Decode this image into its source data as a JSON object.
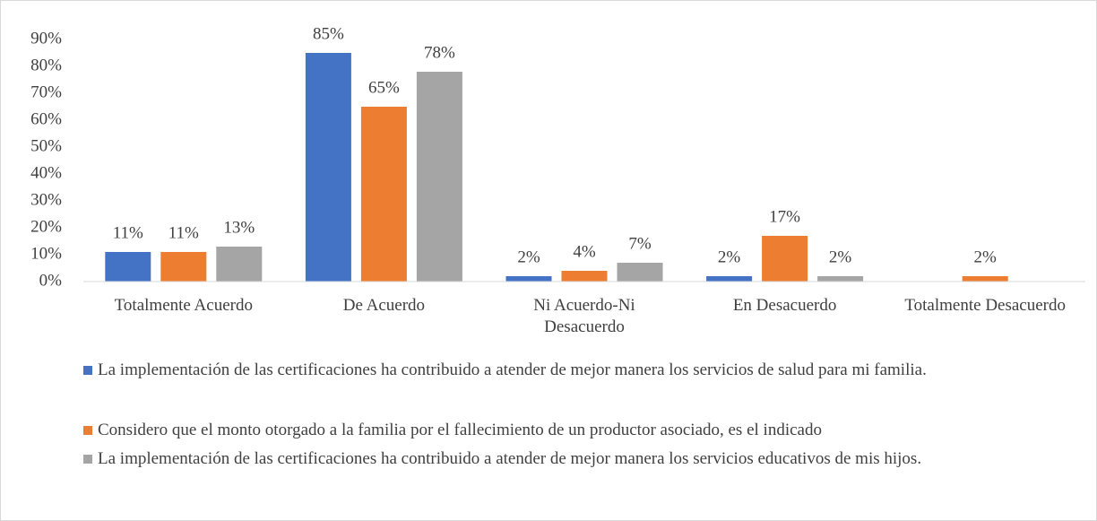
{
  "chart_data": {
    "type": "bar",
    "categories": [
      "Totalmente Acuerdo",
      "De Acuerdo",
      "Ni Acuerdo-Ni Desacuerdo",
      "En Desacuerdo",
      "Totalmente Desacuerdo"
    ],
    "series": [
      {
        "name": "La implementación de las certificaciones ha contribuido a atender de mejor manera los servicios de salud para mi familia.",
        "color": "#4472c4",
        "values": [
          11,
          85,
          2,
          2,
          null
        ],
        "value_labels": [
          "11%",
          "85%",
          "2%",
          "2%",
          null
        ]
      },
      {
        "name": "Considero que el monto otorgado a la familia por el fallecimiento de un productor asociado, es el indicado",
        "color": "#ed7d31",
        "values": [
          11,
          65,
          4,
          17,
          2
        ],
        "value_labels": [
          "11%",
          "65%",
          "4%",
          "17%",
          "2%"
        ]
      },
      {
        "name": "La implementación de las certificaciones  ha contribuido a atender de mejor manera los servicios educativos de mis hijos.",
        "color": "#a5a5a5",
        "values": [
          13,
          78,
          7,
          2,
          null
        ],
        "value_labels": [
          "13%",
          "78%",
          "7%",
          "2%",
          null
        ]
      }
    ],
    "ylim": [
      0,
      90
    ],
    "yticks": [
      {
        "value": 0,
        "label": "0%"
      },
      {
        "value": 10,
        "label": "10%"
      },
      {
        "value": 20,
        "label": "20%"
      },
      {
        "value": 30,
        "label": "30%"
      },
      {
        "value": 40,
        "label": "40%"
      },
      {
        "value": 50,
        "label": "50%"
      },
      {
        "value": 60,
        "label": "60%"
      },
      {
        "value": 70,
        "label": "70%"
      },
      {
        "value": 80,
        "label": "80%"
      },
      {
        "value": 90,
        "label": "90%"
      }
    ],
    "grid": false,
    "legend": "bottom"
  }
}
